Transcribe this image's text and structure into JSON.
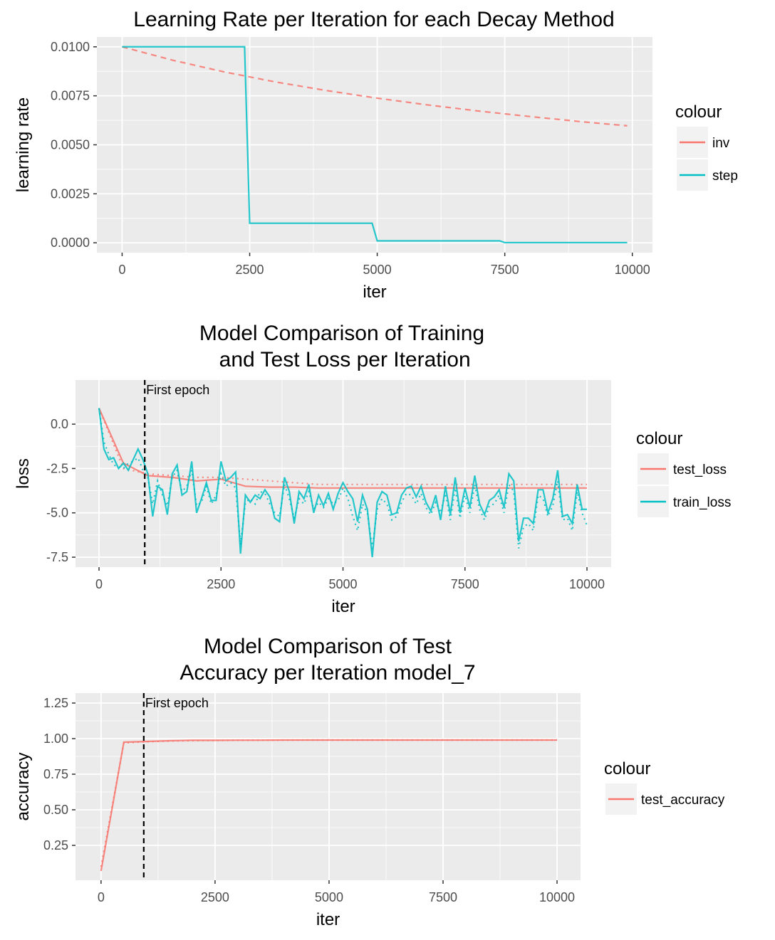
{
  "chart_data": [
    {
      "type": "line",
      "title": [
        "Learning Rate per Iteration for each Decay Method"
      ],
      "x_label": "iter",
      "y_label": "learning rate",
      "xlim": [
        -495,
        10395
      ],
      "xticks": [
        0,
        2500,
        5000,
        7500,
        10000
      ],
      "ylim": [
        -0.0005,
        0.0105
      ],
      "yticks": [
        {
          "value": 0,
          "label": "0.0000"
        },
        {
          "value": 0.0025,
          "label": "0.0025"
        },
        {
          "value": 0.005,
          "label": "0.0050"
        },
        {
          "value": 0.0075,
          "label": "0.0075"
        },
        {
          "value": 0.01,
          "label": "0.0100"
        }
      ],
      "grid": true,
      "legend_title": "colour",
      "legend": "right",
      "series": [
        {
          "name": "inv",
          "color": "#F8766D",
          "dash": "dashed",
          "x": [
            0,
            1000,
            2000,
            3000,
            4000,
            5000,
            6000,
            7000,
            8000,
            9000,
            9900
          ],
          "values": [
            0.01,
            0.00931,
            0.00872,
            0.00821,
            0.00777,
            0.00738,
            0.00703,
            0.00672,
            0.00644,
            0.00618,
            0.00597
          ]
        },
        {
          "name": "step",
          "color": "#00BFC4",
          "dash": "solid",
          "x": [
            0,
            2400,
            2500,
            4900,
            5000,
            7400,
            7500,
            9900
          ],
          "values": [
            0.01,
            0.01,
            0.001,
            0.001,
            0.0001,
            0.0001,
            1e-05,
            1e-05
          ]
        }
      ]
    },
    {
      "type": "line",
      "title": [
        "Model Comparison of Training",
        " and Test Loss per Iteration"
      ],
      "x_label": "iter",
      "y_label": "loss",
      "xlim": [
        -482,
        10496
      ],
      "xticks": [
        0,
        2500,
        5000,
        7500,
        10000
      ],
      "ylim": [
        -8.06,
        2.49
      ],
      "yticks": [
        {
          "value": -7.5,
          "label": "-7.5"
        },
        {
          "value": -5,
          "label": "-5.0"
        },
        {
          "value": -2.5,
          "label": "-2.5"
        },
        {
          "value": 0,
          "label": "0.0"
        }
      ],
      "grid": true,
      "legend_title": "colour",
      "legend": "right",
      "vline": {
        "x": 937,
        "label": "First epoch"
      },
      "series": [
        {
          "name": "test_loss",
          "color": "#F8766D",
          "dash": "solid",
          "x": [
            0,
            500,
            1000,
            1500,
            2000,
            2500,
            3000,
            3500,
            4000,
            4500,
            5000,
            5500,
            6000,
            6500,
            7000,
            7500,
            8000,
            8500,
            9000,
            9500,
            10000
          ],
          "values": [
            0.9,
            -2.2,
            -2.9,
            -3.0,
            -3.2,
            -3.1,
            -3.5,
            -3.55,
            -3.55,
            -3.6,
            -3.6,
            -3.6,
            -3.6,
            -3.6,
            -3.6,
            -3.6,
            -3.6,
            -3.6,
            -3.6,
            -3.6,
            -3.6
          ]
        },
        {
          "name": "test_loss",
          "color": "#F8766D",
          "dash": "dotted",
          "x": [
            0,
            500,
            1000,
            1500,
            2000,
            2500,
            3000,
            3500,
            4000,
            4500,
            5000,
            5500,
            6000,
            6500,
            7000,
            7500,
            8000,
            8500,
            9000,
            9500,
            10000
          ],
          "values": [
            0.9,
            -2.5,
            -2.8,
            -2.9,
            -3.0,
            -3.0,
            -3.1,
            -3.2,
            -3.3,
            -3.4,
            -3.4,
            -3.4,
            -3.4,
            -3.4,
            -3.4,
            -3.4,
            -3.4,
            -3.4,
            -3.4,
            -3.4,
            -3.4
          ]
        },
        {
          "name": "train_loss",
          "color": "#00BFC4",
          "dash": "solid",
          "x": [
            0,
            100,
            200,
            300,
            400,
            500,
            600,
            700,
            800,
            900,
            1000,
            1100,
            1200,
            1300,
            1400,
            1500,
            1600,
            1700,
            1800,
            1900,
            2000,
            2100,
            2200,
            2300,
            2400,
            2500,
            2600,
            2700,
            2800,
            2900,
            3000,
            3100,
            3200,
            3300,
            3400,
            3500,
            3600,
            3700,
            3800,
            3900,
            4000,
            4100,
            4200,
            4300,
            4400,
            4500,
            4600,
            4700,
            4800,
            4900,
            5000,
            5100,
            5200,
            5300,
            5400,
            5500,
            5600,
            5700,
            5800,
            5900,
            6000,
            6100,
            6200,
            6300,
            6400,
            6500,
            6600,
            6700,
            6800,
            6900,
            7000,
            7100,
            7200,
            7300,
            7400,
            7500,
            7600,
            7700,
            7800,
            7900,
            8000,
            8100,
            8200,
            8300,
            8400,
            8500,
            8600,
            8700,
            8800,
            8900,
            9000,
            9100,
            9200,
            9300,
            9400,
            9500,
            9600,
            9700,
            9800,
            9900,
            10000
          ],
          "values": [
            0.9,
            -1.4,
            -2.0,
            -1.9,
            -2.5,
            -2.2,
            -2.6,
            -2.0,
            -1.4,
            -2.0,
            -2.8,
            -5.2,
            -3.5,
            -3.7,
            -5.1,
            -2.8,
            -2.3,
            -4.0,
            -3.8,
            -2.1,
            -5.0,
            -4.2,
            -3.3,
            -4.3,
            -4.3,
            -2.1,
            -3.2,
            -3.0,
            -2.7,
            -7.3,
            -4.0,
            -4.4,
            -4.0,
            -4.2,
            -3.7,
            -4.1,
            -5.3,
            -5.5,
            -3.0,
            -3.8,
            -5.6,
            -3.8,
            -4.2,
            -3.4,
            -5.0,
            -4.0,
            -4.6,
            -3.9,
            -4.8,
            -3.9,
            -3.3,
            -3.8,
            -4.2,
            -5.5,
            -4.0,
            -4.8,
            -7.5,
            -4.4,
            -3.8,
            -4.0,
            -5.1,
            -5.0,
            -4.0,
            -3.6,
            -3.5,
            -4.1,
            -3.5,
            -4.4,
            -4.9,
            -4.0,
            -5.4,
            -3.5,
            -5.1,
            -3.0,
            -5.0,
            -3.6,
            -4.7,
            -2.9,
            -4.5,
            -5.1,
            -4.3,
            -4.1,
            -3.7,
            -4.7,
            -2.8,
            -3.2,
            -6.6,
            -5.3,
            -5.3,
            -5.6,
            -3.7,
            -3.7,
            -5.0,
            -4.2,
            -2.6,
            -5.2,
            -5.1,
            -5.6,
            -3.4,
            -4.8,
            -4.8
          ]
        },
        {
          "name": "train_loss",
          "color": "#00BFC4",
          "dash": "dotted",
          "x": [
            0,
            100,
            200,
            300,
            400,
            500,
            600,
            700,
            800,
            900,
            1000,
            1100,
            1200,
            1300,
            1400,
            1500,
            1600,
            1700,
            1800,
            1900,
            2000,
            2100,
            2200,
            2300,
            2400,
            2500,
            2600,
            2700,
            2800,
            2900,
            3000,
            3100,
            3200,
            3300,
            3400,
            3500,
            3600,
            3700,
            3800,
            3900,
            4000,
            4100,
            4200,
            4300,
            4400,
            4500,
            4600,
            4700,
            4800,
            4900,
            5000,
            5100,
            5200,
            5300,
            5400,
            5500,
            5600,
            5700,
            5800,
            5900,
            6000,
            6100,
            6200,
            6300,
            6400,
            6500,
            6600,
            6700,
            6800,
            6900,
            7000,
            7100,
            7200,
            7300,
            7400,
            7500,
            7600,
            7700,
            7800,
            7900,
            8000,
            8100,
            8200,
            8300,
            8400,
            8500,
            8600,
            8700,
            8800,
            8900,
            9000,
            9100,
            9200,
            9300,
            9400,
            9500,
            9600,
            9700,
            9800,
            9900,
            10000
          ],
          "values": [
            0.9,
            -1.0,
            -1.7,
            -2.3,
            -2.4,
            -2.5,
            -2.2,
            -2.1,
            -1.9,
            -2.6,
            -3.0,
            -4.5,
            -3.2,
            -4.0,
            -4.6,
            -3.0,
            -2.6,
            -3.8,
            -3.5,
            -2.6,
            -4.6,
            -4.4,
            -3.5,
            -4.5,
            -4.0,
            -2.8,
            -3.5,
            -3.3,
            -3.6,
            -6.8,
            -4.4,
            -4.2,
            -4.5,
            -3.8,
            -3.9,
            -4.5,
            -5.0,
            -5.2,
            -3.4,
            -4.2,
            -5.3,
            -4.2,
            -4.5,
            -3.8,
            -4.8,
            -4.4,
            -4.7,
            -4.2,
            -4.5,
            -4.3,
            -3.6,
            -4.2,
            -5.2,
            -6.0,
            -4.5,
            -5.0,
            -7.0,
            -4.8,
            -4.2,
            -4.5,
            -5.4,
            -5.2,
            -4.4,
            -3.9,
            -4.0,
            -4.5,
            -3.9,
            -4.7,
            -5.1,
            -4.4,
            -5.0,
            -3.9,
            -5.4,
            -3.6,
            -5.3,
            -4.0,
            -5.0,
            -3.4,
            -4.8,
            -5.4,
            -4.6,
            -4.5,
            -4.0,
            -5.0,
            -3.4,
            -3.8,
            -7.0,
            -5.8,
            -5.6,
            -6.0,
            -4.0,
            -4.2,
            -5.2,
            -4.6,
            -3.2,
            -5.4,
            -5.3,
            -6.0,
            -3.8,
            -5.0,
            -5.7
          ]
        }
      ]
    },
    {
      "type": "line",
      "title": [
        "Model Comparison of Test",
        "Accuracy per Iteration model_7"
      ],
      "x_label": "iter",
      "y_label": "accuracy",
      "xlim": [
        -560,
        10515
      ],
      "xticks": [
        0,
        2500,
        5000,
        7500,
        10000
      ],
      "ylim": [
        0.005,
        1.32
      ],
      "yticks": [
        0.25,
        {
          "value": 0.5,
          "label": "0.50"
        },
        0.75,
        {
          "value": 1,
          "label": "1.00"
        },
        1.25
      ],
      "grid": true,
      "legend_title": "colour",
      "legend": "right",
      "vline": {
        "x": 937,
        "label": "First epoch"
      },
      "series": [
        {
          "name": "test_accuracy",
          "color": "#F8766D",
          "dash": "solid",
          "x": [
            0,
            500,
            1000,
            1500,
            2000,
            2500,
            3000,
            3500,
            4000,
            4500,
            5000,
            5500,
            6000,
            6500,
            7000,
            7500,
            8000,
            8500,
            9000,
            9500,
            10000
          ],
          "values": [
            0.07,
            0.975,
            0.98,
            0.985,
            0.988,
            0.988,
            0.989,
            0.989,
            0.99,
            0.99,
            0.99,
            0.99,
            0.99,
            0.99,
            0.99,
            0.99,
            0.99,
            0.99,
            0.99,
            0.99,
            0.99
          ]
        },
        {
          "name": "test_accuracy",
          "color": "#F8766D",
          "dash": "dotted",
          "x": [
            0,
            500,
            1000,
            1500,
            2000,
            2500,
            3000,
            3500,
            4000,
            4500,
            5000,
            5500,
            6000,
            6500,
            7000,
            7500,
            8000,
            8500,
            9000,
            9500,
            10000
          ],
          "values": [
            0.1,
            0.97,
            0.978,
            0.983,
            0.986,
            0.987,
            0.988,
            0.989,
            0.989,
            0.99,
            0.99,
            0.99,
            0.99,
            0.99,
            0.99,
            0.99,
            0.99,
            0.99,
            0.99,
            0.99,
            0.99
          ]
        }
      ]
    }
  ]
}
